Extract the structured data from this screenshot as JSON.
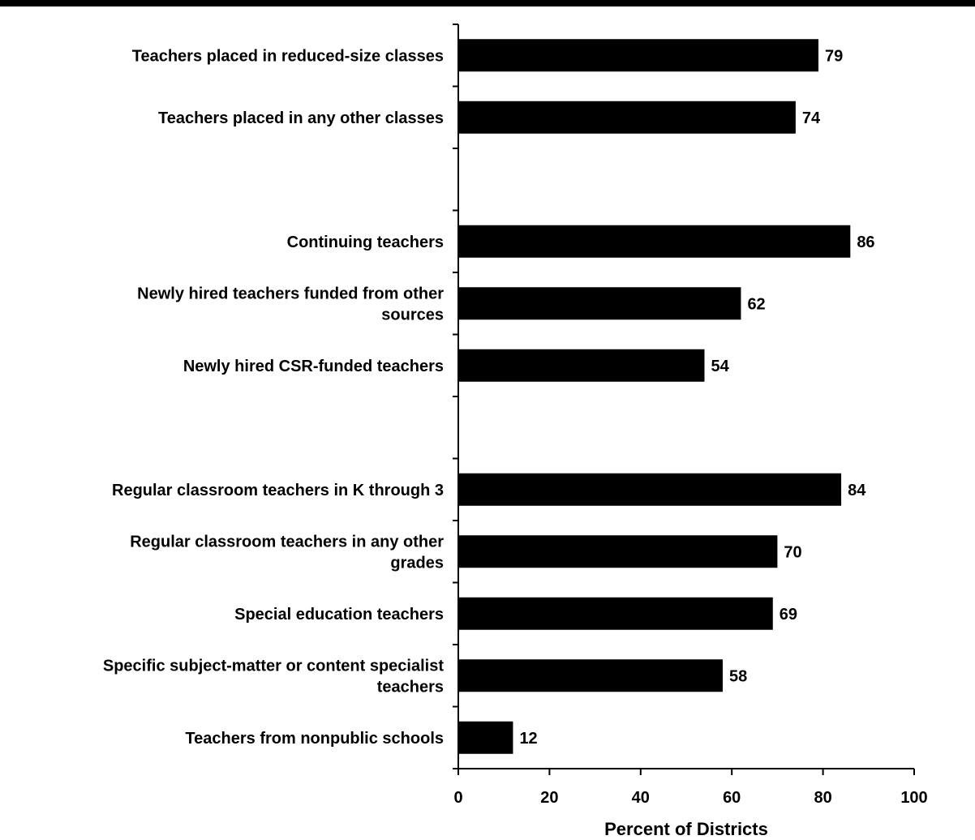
{
  "chart_data": {
    "type": "bar",
    "orientation": "horizontal",
    "title": "",
    "xlabel": "Percent of Districts",
    "ylabel": "",
    "xlim": [
      0,
      100
    ],
    "xticks": [
      0,
      20,
      40,
      60,
      80,
      100
    ],
    "grid": false,
    "bar_color": "#000000",
    "categories": [
      [
        "Teachers placed in reduced-size classes"
      ],
      [
        "Teachers placed in any other classes"
      ],
      [],
      [
        "Continuing teachers"
      ],
      [
        "Newly hired teachers funded from other",
        "sources"
      ],
      [
        "Newly hired CSR-funded teachers"
      ],
      [],
      [
        "Regular classroom teachers in K through 3"
      ],
      [
        "Regular classroom teachers in any other",
        "grades"
      ],
      [
        "Special education teachers"
      ],
      [
        "Specific subject-matter or content specialist",
        "teachers"
      ],
      [
        "Teachers from nonpublic schools"
      ]
    ],
    "values": [
      79,
      74,
      null,
      86,
      62,
      54,
      null,
      84,
      70,
      69,
      58,
      12
    ]
  }
}
